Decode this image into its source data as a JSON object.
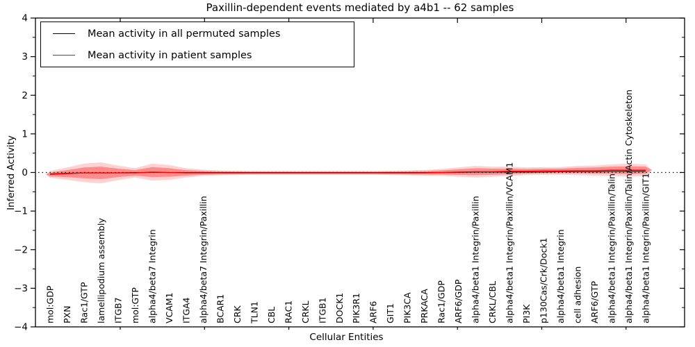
{
  "title": "Paxillin-dependent events mediated by a4b1 -- 62 samples",
  "legend": {
    "items": [
      {
        "label": "Mean activity in all permuted samples",
        "color": "#000000"
      },
      {
        "label": "Mean activity in patient samples",
        "color": "#ff0000"
      }
    ],
    "position": "upper left"
  },
  "chart_data": {
    "type": "area",
    "title": "Paxillin-dependent events mediated by a4b1 -- 62 samples",
    "xlabel": "Cellular Entities",
    "ylabel": "Inferred Activity",
    "ylim": [
      -4,
      4
    ],
    "ytick_labels": [
      "4",
      "3",
      "2",
      "1",
      "0",
      "−1",
      "−2",
      "−3",
      "−4"
    ],
    "ytick_values": [
      4,
      3,
      2,
      1,
      0,
      -1,
      -2,
      -3,
      -4
    ],
    "grid": false,
    "zero_line": true,
    "legend_position": "upper left",
    "categories": [
      "mol:GDP",
      "PXN",
      "Rac1/GTP",
      "lamellipodium assembly",
      "ITGB7",
      "mol:GTP",
      "alpha4/beta7 Integrin",
      "VCAM1",
      "ITGA4",
      "alpha4/beta7 Integrin/Paxillin",
      "BCAR1",
      "CRK",
      "TLN1",
      "CBL",
      "RAC1",
      "CRKL",
      "ITGB1",
      "DOCK1",
      "PIK3R1",
      "ARF6",
      "GIT1",
      "PIK3CA",
      "PRKACA",
      "Rac1/GDP",
      "ARF6/GDP",
      "alpha4/beta1 Integrin/Paxillin",
      "CRKL/CBL",
      "alpha4/beta1 Integrin/Paxillin/VCAM1",
      "PI3K",
      "p130Cas/Crk/Dock1",
      "alpha4/beta1 Integrin",
      "cell adhesion",
      "ARF6/GTP",
      "alpha4/beta1 Integrin/Paxillin/Talin",
      "alpha4/beta1 Integrin/Paxillin/Talin/Actin Cytoskeleton",
      "alpha4/beta1 Integrin/Paxillin/GIT1"
    ],
    "series": [
      {
        "name": "Mean activity in all permuted samples",
        "color": "#1a1a1a",
        "values": [
          -0.04,
          -0.02,
          -0.01,
          -0.01,
          -0.01,
          0,
          0,
          0,
          0,
          0,
          0,
          0,
          0,
          0,
          0,
          0,
          0,
          0,
          0,
          0,
          0,
          0,
          0,
          0,
          0,
          0.01,
          0.01,
          0.01,
          0.01,
          0.01,
          0.02,
          0.02,
          0.02,
          0.03,
          0.03,
          0.03
        ]
      },
      {
        "name": "Mean activity in patient samples",
        "color": "#ff0000",
        "values": [
          -0.05,
          -0.03,
          -0.01,
          -0.01,
          -0.01,
          -0.01,
          0.01,
          0,
          -0.01,
          -0.01,
          -0.01,
          -0.01,
          -0.01,
          -0.01,
          -0.01,
          -0.01,
          -0.01,
          -0.01,
          -0.01,
          -0.01,
          -0.01,
          -0.01,
          -0.01,
          0,
          0.01,
          0.02,
          0.02,
          0.03,
          0.03,
          0.04,
          0.04,
          0.05,
          0.05,
          0.06,
          0.06,
          0.06
        ]
      },
      {
        "name": "patient band half-width inner",
        "color": "rgba(255,0,0,0.33)",
        "values": [
          0.05,
          0.09,
          0.14,
          0.16,
          0.11,
          0.07,
          0.13,
          0.11,
          0.07,
          0.05,
          0.04,
          0.035,
          0.03,
          0.03,
          0.03,
          0.03,
          0.03,
          0.03,
          0.03,
          0.03,
          0.035,
          0.04,
          0.045,
          0.055,
          0.07,
          0.09,
          0.08,
          0.07,
          0.06,
          0.06,
          0.06,
          0.07,
          0.08,
          0.09,
          0.1,
          0.09
        ]
      },
      {
        "name": "patient band half-width outer",
        "color": "rgba(255,0,0,0.18)",
        "values": [
          0.09,
          0.16,
          0.24,
          0.27,
          0.19,
          0.12,
          0.22,
          0.19,
          0.12,
          0.08,
          0.065,
          0.055,
          0.05,
          0.05,
          0.05,
          0.05,
          0.05,
          0.05,
          0.05,
          0.05,
          0.055,
          0.065,
          0.075,
          0.09,
          0.12,
          0.15,
          0.13,
          0.12,
          0.1,
          0.1,
          0.1,
          0.12,
          0.13,
          0.15,
          0.17,
          0.15
        ]
      }
    ]
  }
}
